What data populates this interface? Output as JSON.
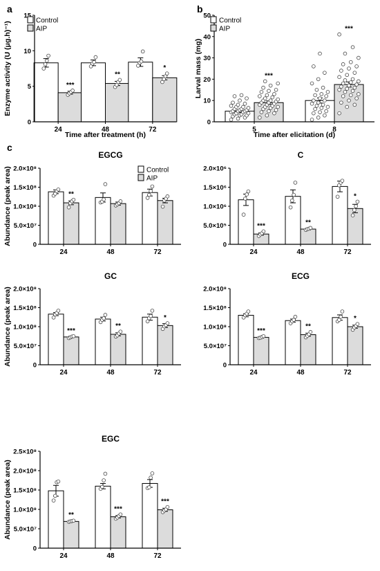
{
  "figure_title": "",
  "panel_labels": {
    "a": "a",
    "b": "b",
    "c": "c"
  },
  "styles": {
    "control_fill": "#ffffff",
    "aip_fill": "#dcdcdc",
    "stroke": "#000000"
  },
  "chart_data": [
    {
      "id": "a",
      "type": "bar",
      "title": "",
      "xlabel": "Time after treatment (h)",
      "ylabel": "Enzyme activity (U (μg.h)⁻¹)",
      "categories": [
        "24",
        "48",
        "72"
      ],
      "ylim": [
        0,
        15
      ],
      "yticks": [
        "0",
        "5",
        "10",
        "15"
      ],
      "legend": {
        "position": "top-left",
        "entries": [
          "Control",
          "AIP"
        ]
      },
      "series": [
        {
          "name": "Control",
          "values": [
            8.3,
            8.3,
            8.4
          ],
          "errors": [
            0.6,
            0.4,
            0.6
          ],
          "points": [
            [
              7.5,
              8.1,
              8.6,
              9.3
            ],
            [
              7.8,
              8.2,
              8.4,
              9.1
            ],
            [
              7.9,
              8.3,
              8.5,
              9.9
            ]
          ]
        },
        {
          "name": "AIP",
          "values": [
            4.1,
            5.4,
            6.2
          ],
          "errors": [
            0.2,
            0.3,
            0.3
          ],
          "points": [
            [
              3.8,
              4.0,
              4.2,
              4.4
            ],
            [
              4.9,
              5.2,
              5.6,
              5.9
            ],
            [
              5.6,
              6.0,
              6.4,
              6.8
            ]
          ]
        }
      ],
      "significance": [
        "***",
        "**",
        "*"
      ]
    },
    {
      "id": "b",
      "type": "bar",
      "title": "",
      "xlabel": "Time after elicitation (d)",
      "ylabel": "Larval mass (mg)",
      "categories": [
        "5",
        "8"
      ],
      "ylim": [
        0,
        50
      ],
      "yticks": [
        "0",
        "10",
        "20",
        "30",
        "40",
        "50"
      ],
      "legend": {
        "position": "top-left",
        "entries": [
          "Control",
          "AIP"
        ]
      },
      "series": [
        {
          "name": "Control",
          "values": [
            5.0,
            10.0
          ],
          "errors": [
            0.6,
            1.2
          ],
          "points": [
            [
              1,
              1.5,
              2,
              2.5,
              3,
              3,
              3.5,
              3.5,
              4,
              4,
              4.5,
              4.5,
              5,
              5,
              5,
              5.5,
              5.5,
              6,
              6,
              6.5,
              7,
              7,
              7.5,
              8,
              8.5,
              9,
              10,
              11,
              12,
              12.5
            ],
            [
              1,
              2,
              3,
              4,
              4.5,
              5,
              6,
              6.5,
              7,
              7.5,
              8,
              8.5,
              9,
              10,
              10,
              11,
              12,
              12.5,
              13,
              14,
              15,
              16,
              18,
              20,
              23,
              26,
              32
            ]
          ]
        },
        {
          "name": "AIP",
          "values": [
            9.0,
            17.5
          ],
          "errors": [
            0.8,
            1.2
          ],
          "points": [
            [
              2,
              3,
              4,
              4.5,
              5,
              5.5,
              6,
              6.5,
              7,
              7,
              7.5,
              8,
              8,
              8.5,
              9,
              9,
              9.5,
              10,
              10,
              10.5,
              11,
              11.5,
              12,
              12.5,
              13,
              14,
              14.5,
              15,
              16,
              17,
              18,
              19
            ],
            [
              4,
              7,
              8,
              9,
              10,
              11,
              12,
              12.5,
              13,
              14,
              14.5,
              15,
              15.5,
              16,
              16.5,
              17,
              17.5,
              18,
              18.5,
              19,
              19.5,
              20,
              21,
              22,
              23,
              24,
              25,
              26,
              27,
              28,
              30,
              32,
              35,
              41
            ]
          ]
        }
      ],
      "significance": [
        "***",
        "***"
      ]
    },
    {
      "id": "c-egcg",
      "type": "bar",
      "title": "EGCG",
      "xlabel": "",
      "ylabel": "Abundance (peak area)",
      "categories": [
        "24",
        "48",
        "72"
      ],
      "ylim": [
        0,
        2.0
      ],
      "scale_exp": 8,
      "yticks": [
        "0",
        "5.0×10⁷",
        "1.0×10⁸",
        "1.5×10⁸",
        "2.0×10⁸"
      ],
      "legend": {
        "position": "top-right",
        "entries": [
          "Control",
          "AIP"
        ]
      },
      "series": [
        {
          "name": "Control",
          "values": [
            1.38,
            1.23,
            1.36
          ],
          "errors": [
            0.05,
            0.12,
            0.09
          ],
          "points": [
            [
              1.28,
              1.33,
              1.4,
              1.44
            ],
            [
              1.1,
              1.12,
              1.18,
              1.58
            ],
            [
              1.22,
              1.3,
              1.4,
              1.52
            ]
          ]
        },
        {
          "name": "AIP",
          "values": [
            1.09,
            1.07,
            1.15
          ],
          "errors": [
            0.05,
            0.04,
            0.06
          ],
          "points": [
            [
              0.97,
              1.08,
              1.13,
              1.17
            ],
            [
              1.02,
              1.05,
              1.08,
              1.13
            ],
            [
              0.99,
              1.15,
              1.2,
              1.26
            ]
          ]
        }
      ],
      "significance": [
        "**",
        "",
        ""
      ]
    },
    {
      "id": "c-c",
      "type": "bar",
      "title": "C",
      "xlabel": "",
      "ylabel": "",
      "categories": [
        "24",
        "48",
        "72"
      ],
      "ylim": [
        0,
        2.0
      ],
      "scale_exp": 6,
      "yticks": [
        "0",
        "5.0×10⁵",
        "1.0×10⁶",
        "1.5×10⁶",
        "2.0×10⁶"
      ],
      "series": [
        {
          "name": "Control",
          "values": [
            1.17,
            1.26,
            1.52
          ],
          "errors": [
            0.15,
            0.17,
            0.14
          ],
          "points": [
            [
              0.78,
              1.2,
              1.31,
              1.39
            ],
            [
              0.97,
              1.15,
              1.3,
              1.62
            ],
            [
              1.25,
              1.55,
              1.62,
              1.67
            ]
          ]
        },
        {
          "name": "AIP",
          "values": [
            0.27,
            0.4,
            0.94
          ],
          "errors": [
            0.03,
            0.02,
            0.11
          ],
          "points": [
            [
              0.22,
              0.26,
              0.29,
              0.34
            ],
            [
              0.38,
              0.4,
              0.41,
              0.43
            ],
            [
              0.76,
              0.9,
              1.0,
              1.12
            ]
          ]
        }
      ],
      "significance": [
        "***",
        "**",
        "*"
      ]
    },
    {
      "id": "c-gc",
      "type": "bar",
      "title": "GC",
      "xlabel": "",
      "ylabel": "Abundance (peak area)",
      "categories": [
        "24",
        "48",
        "72"
      ],
      "ylim": [
        0,
        2.0
      ],
      "scale_exp": 8,
      "yticks": [
        "0",
        "5.0×10⁷",
        "1.0×10⁸",
        "1.5×10⁸",
        "2.0×10⁸"
      ],
      "series": [
        {
          "name": "Control",
          "values": [
            1.33,
            1.2,
            1.25
          ],
          "errors": [
            0.04,
            0.05,
            0.08
          ],
          "points": [
            [
              1.24,
              1.32,
              1.36,
              1.42
            ],
            [
              1.12,
              1.18,
              1.22,
              1.31
            ],
            [
              1.14,
              1.22,
              1.28,
              1.42
            ]
          ]
        },
        {
          "name": "AIP",
          "values": [
            0.73,
            0.8,
            1.03
          ],
          "errors": [
            0.02,
            0.04,
            0.05
          ],
          "points": [
            [
              0.7,
              0.72,
              0.74,
              0.75
            ],
            [
              0.74,
              0.77,
              0.82,
              0.87
            ],
            [
              0.94,
              1.01,
              1.04,
              1.09
            ]
          ]
        }
      ],
      "significance": [
        "***",
        "**",
        "*"
      ]
    },
    {
      "id": "c-ecg",
      "type": "bar",
      "title": "ECG",
      "xlabel": "",
      "ylabel": "",
      "categories": [
        "24",
        "48",
        "72"
      ],
      "ylim": [
        0,
        2.0
      ],
      "scale_exp": 8,
      "yticks": [
        "0",
        "5.0×10⁷",
        "1.0×10⁸",
        "1.5×10⁸",
        "2.0×10⁸"
      ],
      "series": [
        {
          "name": "Control",
          "values": [
            1.3,
            1.16,
            1.24
          ],
          "errors": [
            0.04,
            0.04,
            0.07
          ],
          "points": [
            [
              1.24,
              1.3,
              1.34,
              1.4
            ],
            [
              1.09,
              1.14,
              1.18,
              1.26
            ],
            [
              1.14,
              1.18,
              1.26,
              1.4
            ]
          ]
        },
        {
          "name": "AIP",
          "values": [
            0.72,
            0.79,
            1.0
          ],
          "errors": [
            0.02,
            0.04,
            0.04
          ],
          "points": [
            [
              0.7,
              0.71,
              0.73,
              0.75
            ],
            [
              0.72,
              0.76,
              0.8,
              0.86
            ],
            [
              0.92,
              0.98,
              1.02,
              1.07
            ]
          ]
        }
      ],
      "significance": [
        "***",
        "**",
        "*"
      ]
    },
    {
      "id": "c-egc",
      "type": "bar",
      "title": "EGC",
      "xlabel": "",
      "ylabel": "Abundance (peak area)",
      "categories": [
        "24",
        "48",
        "72"
      ],
      "ylim": [
        0,
        2.5
      ],
      "scale_exp": 8,
      "yticks": [
        "0",
        "5.0×10⁷",
        "1.0×10⁸",
        "1.5×10⁸",
        "2.0×10⁸",
        "2.5×10⁸"
      ],
      "series": [
        {
          "name": "Control",
          "values": [
            1.48,
            1.6,
            1.67
          ],
          "errors": [
            0.14,
            0.07,
            0.1
          ],
          "points": [
            [
              1.23,
              1.35,
              1.7,
              1.72
            ],
            [
              1.53,
              1.58,
              1.75,
              1.92
            ],
            [
              1.55,
              1.57,
              1.82,
              1.93
            ]
          ]
        },
        {
          "name": "AIP",
          "values": [
            0.69,
            0.81,
            0.99
          ],
          "errors": [
            0.01,
            0.03,
            0.04
          ],
          "points": [
            [
              0.68,
              0.69,
              0.7,
              0.71
            ],
            [
              0.76,
              0.79,
              0.83,
              0.87
            ],
            [
              0.93,
              0.97,
              1.0,
              1.06
            ]
          ]
        }
      ],
      "significance": [
        "**",
        "***",
        "***"
      ]
    }
  ]
}
